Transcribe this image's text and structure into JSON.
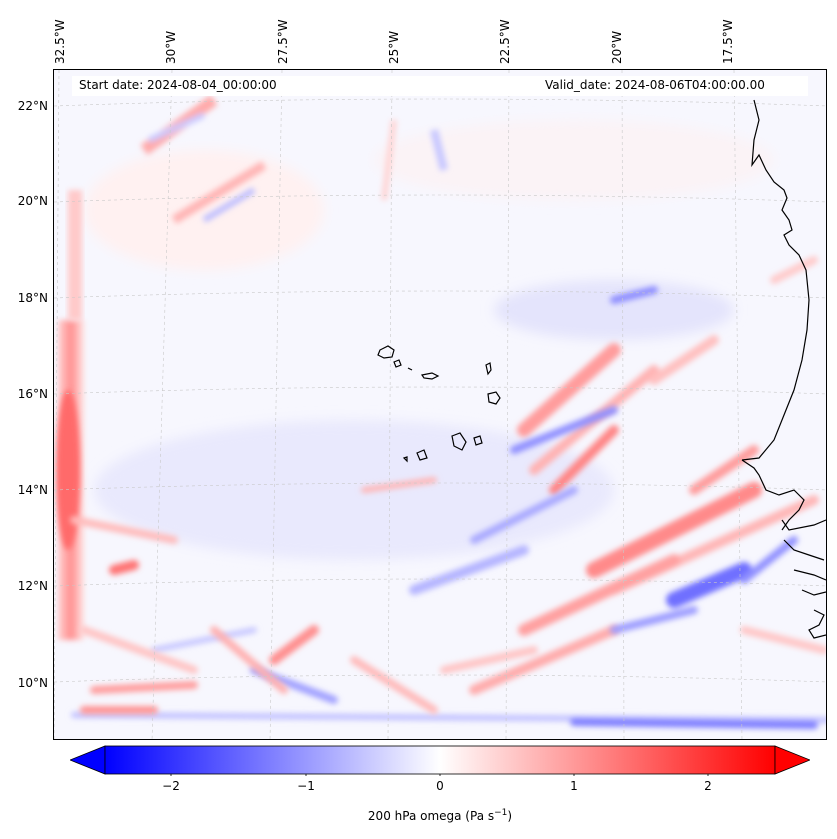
{
  "header": {
    "start_date": "Start date: 2024-08-04_00:00:00",
    "valid_date": "Valid_date: 2024-08-06T04:00:00.00"
  },
  "axes": {
    "lon_labels": [
      "32.5°W",
      "30°W",
      "27.5°W",
      "25°W",
      "22.5°W",
      "20°W",
      "17.5°W"
    ],
    "lat_labels": [
      "22°N",
      "20°N",
      "18°N",
      "16°N",
      "14°N",
      "12°N",
      "10°N"
    ]
  },
  "colorbar": {
    "ticks": [
      "−2",
      "−1",
      "0",
      "1",
      "2"
    ],
    "title": "200 hPa omega (Pa s",
    "title_sup": "−1",
    "title_end": ")",
    "colors": {
      "negative": "#0000ff",
      "zero": "#ffffff",
      "positive": "#ff0000"
    }
  }
}
